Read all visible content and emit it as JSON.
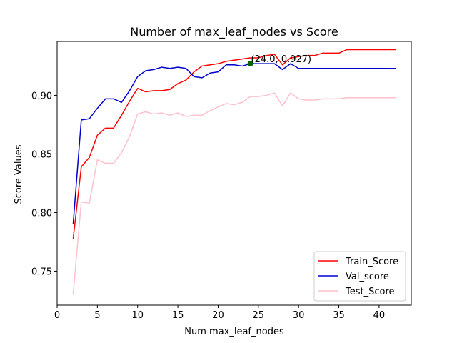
{
  "chart_data": {
    "type": "line",
    "title": "Number of max_leaf_nodes vs Score",
    "xlabel": "Num max_leaf_nodes",
    "ylabel": "Score Values",
    "xlim": [
      0,
      44
    ],
    "ylim": [
      0.721,
      0.946
    ],
    "xticks": [
      0,
      5,
      10,
      15,
      20,
      25,
      30,
      35,
      40
    ],
    "yticks": [
      0.75,
      0.8,
      0.85,
      0.9
    ],
    "grid": false,
    "legend": "lower-right",
    "x": [
      2,
      3,
      4,
      5,
      6,
      7,
      8,
      9,
      10,
      11,
      12,
      13,
      14,
      15,
      16,
      17,
      18,
      19,
      20,
      21,
      22,
      23,
      24,
      25,
      26,
      27,
      28,
      29,
      30,
      31,
      32,
      33,
      34,
      35,
      36,
      37,
      38,
      39,
      40,
      41,
      42
    ],
    "series": [
      {
        "name": "Train_Score",
        "color": "#ff0000",
        "values": [
          0.778,
          0.839,
          0.847,
          0.866,
          0.872,
          0.872,
          0.883,
          0.895,
          0.906,
          0.903,
          0.904,
          0.904,
          0.905,
          0.91,
          0.913,
          0.92,
          0.925,
          0.926,
          0.927,
          0.929,
          0.93,
          0.931,
          0.932,
          0.932,
          0.934,
          0.935,
          0.926,
          0.932,
          0.933,
          0.934,
          0.934,
          0.936,
          0.936,
          0.936,
          0.939,
          0.939,
          0.939,
          0.939,
          0.939,
          0.939,
          0.939
        ]
      },
      {
        "name": "Val_score",
        "color": "#0000cd",
        "values": [
          0.791,
          0.879,
          0.88,
          0.889,
          0.897,
          0.897,
          0.894,
          0.904,
          0.916,
          0.921,
          0.922,
          0.924,
          0.923,
          0.924,
          0.923,
          0.916,
          0.915,
          0.919,
          0.92,
          0.926,
          0.926,
          0.925,
          0.927,
          0.927,
          0.927,
          0.927,
          0.922,
          0.927,
          0.923,
          0.923,
          0.923,
          0.923,
          0.923,
          0.923,
          0.923,
          0.923,
          0.923,
          0.923,
          0.923,
          0.923,
          0.923
        ]
      },
      {
        "name": "Test_Score",
        "color": "#ffc0cb",
        "values": [
          0.731,
          0.809,
          0.808,
          0.845,
          0.842,
          0.842,
          0.851,
          0.865,
          0.884,
          0.886,
          0.884,
          0.885,
          0.883,
          0.885,
          0.882,
          0.883,
          0.883,
          0.887,
          0.89,
          0.893,
          0.892,
          0.894,
          0.899,
          0.899,
          0.9,
          0.902,
          0.891,
          0.902,
          0.897,
          0.896,
          0.896,
          0.897,
          0.897,
          0.897,
          0.898,
          0.898,
          0.898,
          0.898,
          0.898,
          0.898,
          0.898
        ]
      }
    ],
    "annotation": {
      "text": "(24.0, 0.927)",
      "x": 24.0,
      "y": 0.927,
      "marker_color": "#006400"
    }
  }
}
